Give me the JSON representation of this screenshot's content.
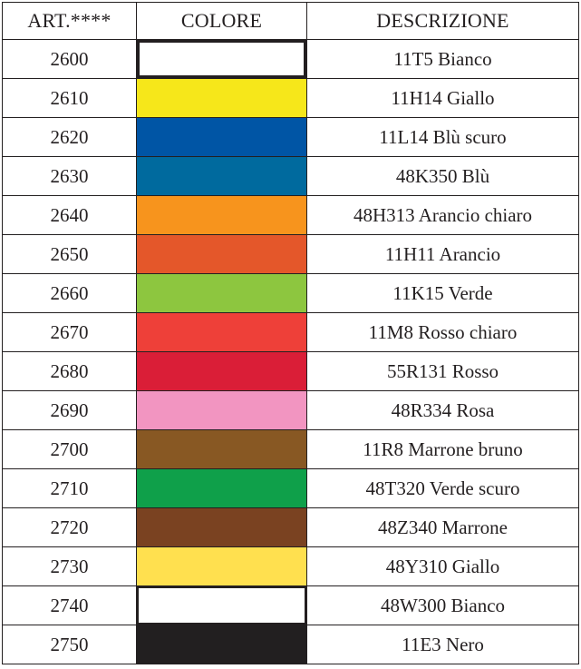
{
  "table": {
    "headers": {
      "art": "ART.****",
      "color": "COLORE",
      "description": "DESCRIZIONE"
    },
    "rows": [
      {
        "art": "2600",
        "color": "#ffffff",
        "color_name": "white",
        "description": "11T5 Bianco"
      },
      {
        "art": "2610",
        "color": "#f6e71a",
        "color_name": "yellow",
        "description": "11H14 Giallo"
      },
      {
        "art": "2620",
        "color": "#0055a5",
        "color_name": "dark-blue",
        "description": "11L14 Blù scuro"
      },
      {
        "art": "2630",
        "color": "#006a9e",
        "color_name": "blue",
        "description": "48K350 Blù"
      },
      {
        "art": "2640",
        "color": "#f7941d",
        "color_name": "light-orange",
        "description": "48H313 Arancio chiaro"
      },
      {
        "art": "2650",
        "color": "#e4572a",
        "color_name": "orange",
        "description": "11H11 Arancio"
      },
      {
        "art": "2660",
        "color": "#8dc63f",
        "color_name": "green",
        "description": "11K15 Verde"
      },
      {
        "art": "2670",
        "color": "#ee4039",
        "color_name": "light-red",
        "description": "11M8 Rosso chiaro"
      },
      {
        "art": "2680",
        "color": "#da1e37",
        "color_name": "red",
        "description": "55R131 Rosso"
      },
      {
        "art": "2690",
        "color": "#f295c1",
        "color_name": "pink",
        "description": "48R334 Rosa"
      },
      {
        "art": "2700",
        "color": "#885823",
        "color_name": "brown",
        "description": "11R8 Marrone bruno"
      },
      {
        "art": "2710",
        "color": "#0fa04a",
        "color_name": "dark-green",
        "description": "48T320 Verde scuro"
      },
      {
        "art": "2720",
        "color": "#7a4221",
        "color_name": "dark-brown",
        "description": "48Z340 Marrone"
      },
      {
        "art": "2730",
        "color": "#ffe04f",
        "color_name": "yellow",
        "description": "48Y310 Giallo"
      },
      {
        "art": "2740",
        "color": "#ffffff",
        "color_name": "white",
        "description": "48W300 Bianco"
      },
      {
        "art": "2750",
        "color": "#221f20",
        "color_name": "black",
        "description": "11E3 Nero"
      }
    ]
  }
}
